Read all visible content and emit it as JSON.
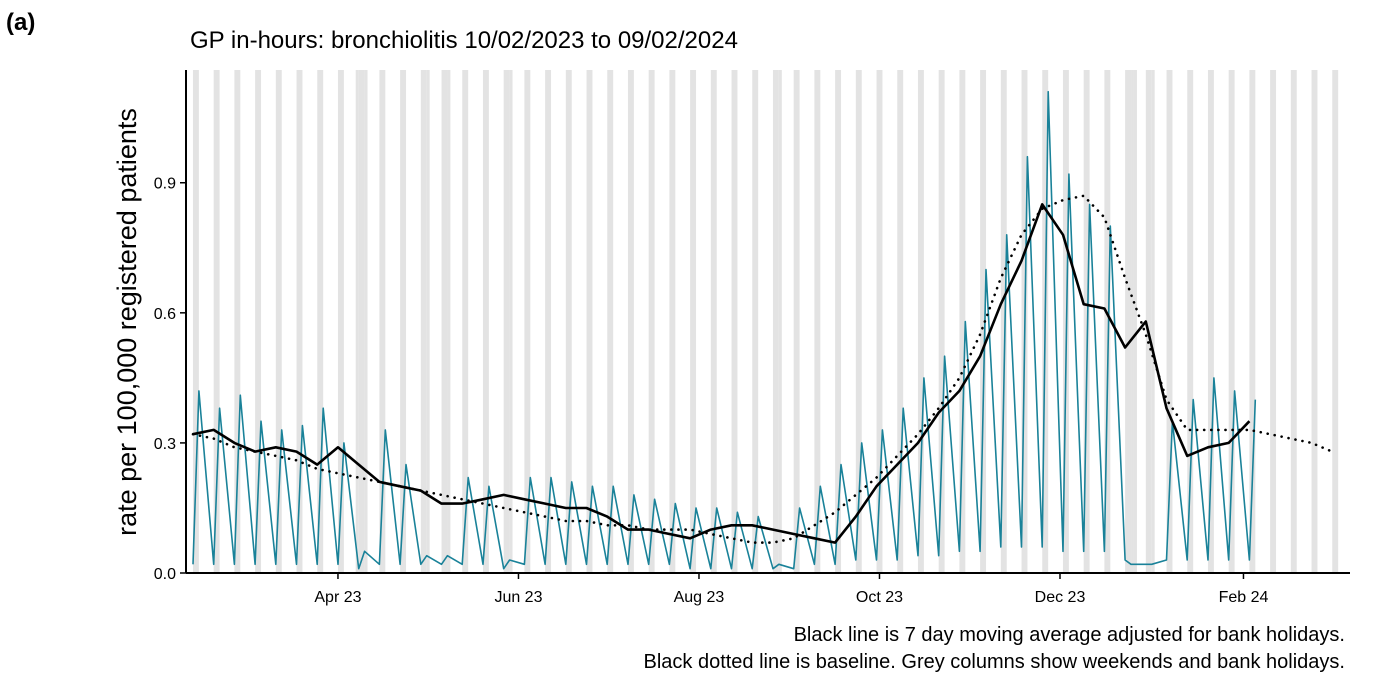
{
  "chart_data": {
    "type": "line",
    "panel_label": "(a)",
    "title": "GP in-hours: bronchiolitis 10/02/2023 to 09/02/2024",
    "ylabel": "rate per 100,000 registered patients",
    "footnotes": [
      "Black line is 7 day moving average adjusted for bank holidays.",
      "Black dotted line is baseline. Grey columns show weekends and bank holidays."
    ],
    "xlim": [
      "2023-02-10",
      "2024-03-08"
    ],
    "ylim": [
      0,
      1.16
    ],
    "xticks": [
      {
        "value": "2023-04-01",
        "label": "Apr 23"
      },
      {
        "value": "2023-06-01",
        "label": "Jun 23"
      },
      {
        "value": "2023-08-01",
        "label": "Aug 23"
      },
      {
        "value": "2023-10-01",
        "label": "Oct 23"
      },
      {
        "value": "2023-12-01",
        "label": "Dec 23"
      },
      {
        "value": "2024-02-01",
        "label": "Feb 24"
      }
    ],
    "yticks": [
      {
        "value": 0,
        "label": "0.0"
      },
      0.3,
      0.6,
      0.9
    ],
    "shade_color": "#e3e3e3",
    "weekend_starts": [
      "2023-02-11",
      "2023-02-18",
      "2023-02-25",
      "2023-03-04",
      "2023-03-11",
      "2023-03-18",
      "2023-03-25",
      "2023-04-01",
      "2023-04-08",
      "2023-04-15",
      "2023-04-22",
      "2023-04-29",
      "2023-05-06",
      "2023-05-13",
      "2023-05-20",
      "2023-05-27",
      "2023-06-03",
      "2023-06-10",
      "2023-06-17",
      "2023-06-24",
      "2023-07-01",
      "2023-07-08",
      "2023-07-15",
      "2023-07-22",
      "2023-07-29",
      "2023-08-05",
      "2023-08-12",
      "2023-08-19",
      "2023-08-26",
      "2023-09-02",
      "2023-09-09",
      "2023-09-16",
      "2023-09-23",
      "2023-09-30",
      "2023-10-07",
      "2023-10-14",
      "2023-10-21",
      "2023-10-28",
      "2023-11-04",
      "2023-11-11",
      "2023-11-18",
      "2023-11-25",
      "2023-12-02",
      "2023-12-09",
      "2023-12-16",
      "2023-12-23",
      "2023-12-30",
      "2024-01-06",
      "2024-01-13",
      "2024-01-20",
      "2024-01-27",
      "2024-02-03",
      "2024-02-10",
      "2024-02-17",
      "2024-02-24",
      "2024-03-02"
    ],
    "bank_holidays": [
      "2023-04-07",
      "2023-04-10",
      "2023-05-01",
      "2023-05-08",
      "2023-05-29",
      "2023-08-28",
      "2023-12-25",
      "2023-12-26",
      "2024-01-01"
    ],
    "series": [
      {
        "color": "#1a8299",
        "style": "solid",
        "width": 1.6,
        "x": [
          "2023-02-11",
          "2023-02-13",
          "2023-02-18",
          "2023-02-20",
          "2023-02-25",
          "2023-02-27",
          "2023-03-04",
          "2023-03-06",
          "2023-03-11",
          "2023-03-13",
          "2023-03-18",
          "2023-03-20",
          "2023-03-25",
          "2023-03-27",
          "2023-04-01",
          "2023-04-03",
          "2023-04-08",
          "2023-04-10",
          "2023-04-15",
          "2023-04-17",
          "2023-04-22",
          "2023-04-24",
          "2023-04-29",
          "2023-05-01",
          "2023-05-06",
          "2023-05-08",
          "2023-05-13",
          "2023-05-15",
          "2023-05-20",
          "2023-05-22",
          "2023-05-27",
          "2023-05-29",
          "2023-06-03",
          "2023-06-05",
          "2023-06-10",
          "2023-06-12",
          "2023-06-17",
          "2023-06-19",
          "2023-06-24",
          "2023-06-26",
          "2023-07-01",
          "2023-07-03",
          "2023-07-08",
          "2023-07-10",
          "2023-07-15",
          "2023-07-17",
          "2023-07-22",
          "2023-07-24",
          "2023-07-29",
          "2023-07-31",
          "2023-08-05",
          "2023-08-07",
          "2023-08-12",
          "2023-08-14",
          "2023-08-19",
          "2023-08-21",
          "2023-08-26",
          "2023-08-28",
          "2023-09-02",
          "2023-09-04",
          "2023-09-09",
          "2023-09-11",
          "2023-09-16",
          "2023-09-18",
          "2023-09-23",
          "2023-09-25",
          "2023-09-30",
          "2023-10-02",
          "2023-10-07",
          "2023-10-09",
          "2023-10-14",
          "2023-10-16",
          "2023-10-21",
          "2023-10-23",
          "2023-10-28",
          "2023-10-30",
          "2023-11-04",
          "2023-11-06",
          "2023-11-11",
          "2023-11-13",
          "2023-11-18",
          "2023-11-20",
          "2023-11-25",
          "2023-11-27",
          "2023-12-02",
          "2023-12-04",
          "2023-12-09",
          "2023-12-11",
          "2023-12-16",
          "2023-12-18",
          "2023-12-23",
          "2023-12-25",
          "2023-12-30",
          "2024-01-01",
          "2024-01-06",
          "2024-01-08",
          "2024-01-13",
          "2024-01-15",
          "2024-01-20",
          "2024-01-22",
          "2024-01-27",
          "2024-01-29",
          "2024-02-03",
          "2024-02-05"
        ],
        "values": [
          0.02,
          0.42,
          0.02,
          0.38,
          0.02,
          0.41,
          0.02,
          0.35,
          0.02,
          0.33,
          0.02,
          0.34,
          0.02,
          0.38,
          0.02,
          0.3,
          0.01,
          0.05,
          0.02,
          0.33,
          0.02,
          0.25,
          0.02,
          0.04,
          0.02,
          0.04,
          0.02,
          0.22,
          0.02,
          0.2,
          0.01,
          0.03,
          0.02,
          0.22,
          0.02,
          0.22,
          0.02,
          0.21,
          0.02,
          0.2,
          0.02,
          0.2,
          0.02,
          0.18,
          0.02,
          0.17,
          0.02,
          0.16,
          0.01,
          0.15,
          0.01,
          0.15,
          0.01,
          0.14,
          0.01,
          0.13,
          0.01,
          0.02,
          0.01,
          0.15,
          0.02,
          0.2,
          0.02,
          0.25,
          0.03,
          0.3,
          0.03,
          0.33,
          0.03,
          0.38,
          0.04,
          0.45,
          0.04,
          0.5,
          0.05,
          0.58,
          0.05,
          0.7,
          0.06,
          0.78,
          0.06,
          0.96,
          0.06,
          1.11,
          0.05,
          0.92,
          0.05,
          0.85,
          0.05,
          0.8,
          0.03,
          0.02,
          0.02,
          0.02,
          0.03,
          0.35,
          0.03,
          0.4,
          0.03,
          0.45,
          0.03,
          0.42,
          0.03,
          0.4
        ]
      },
      {
        "color": "#000000",
        "style": "solid",
        "width": 2.6,
        "x": [
          "2023-02-11",
          "2023-02-18",
          "2023-02-25",
          "2023-03-04",
          "2023-03-11",
          "2023-03-18",
          "2023-03-25",
          "2023-04-01",
          "2023-04-08",
          "2023-04-15",
          "2023-04-22",
          "2023-04-29",
          "2023-05-06",
          "2023-05-13",
          "2023-05-20",
          "2023-05-27",
          "2023-06-03",
          "2023-06-10",
          "2023-06-17",
          "2023-06-24",
          "2023-07-01",
          "2023-07-08",
          "2023-07-15",
          "2023-07-22",
          "2023-07-29",
          "2023-08-05",
          "2023-08-12",
          "2023-08-19",
          "2023-08-26",
          "2023-09-02",
          "2023-09-09",
          "2023-09-16",
          "2023-09-23",
          "2023-09-30",
          "2023-10-07",
          "2023-10-14",
          "2023-10-21",
          "2023-10-28",
          "2023-11-04",
          "2023-11-11",
          "2023-11-18",
          "2023-11-25",
          "2023-12-02",
          "2023-12-09",
          "2023-12-16",
          "2023-12-23",
          "2023-12-30",
          "2024-01-06",
          "2024-01-13",
          "2024-01-20",
          "2024-01-27",
          "2024-02-03"
        ],
        "values": [
          0.32,
          0.33,
          0.3,
          0.28,
          0.29,
          0.28,
          0.25,
          0.29,
          0.25,
          0.21,
          0.2,
          0.19,
          0.16,
          0.16,
          0.17,
          0.18,
          0.17,
          0.16,
          0.15,
          0.15,
          0.13,
          0.1,
          0.1,
          0.09,
          0.08,
          0.1,
          0.11,
          0.11,
          0.1,
          0.09,
          0.08,
          0.07,
          0.13,
          0.2,
          0.25,
          0.3,
          0.37,
          0.42,
          0.5,
          0.62,
          0.72,
          0.85,
          0.78,
          0.62,
          0.61,
          0.52,
          0.58,
          0.38,
          0.27,
          0.29,
          0.3,
          0.35
        ]
      },
      {
        "color": "#000000",
        "style": "dotted",
        "width": 2.6,
        "x": [
          "2023-02-11",
          "2023-02-18",
          "2023-02-25",
          "2023-03-04",
          "2023-03-11",
          "2023-03-18",
          "2023-03-25",
          "2023-04-01",
          "2023-04-08",
          "2023-04-15",
          "2023-04-22",
          "2023-04-29",
          "2023-05-06",
          "2023-05-13",
          "2023-05-20",
          "2023-05-27",
          "2023-06-03",
          "2023-06-10",
          "2023-06-17",
          "2023-06-24",
          "2023-07-01",
          "2023-07-08",
          "2023-07-15",
          "2023-07-22",
          "2023-07-29",
          "2023-08-05",
          "2023-08-12",
          "2023-08-19",
          "2023-08-26",
          "2023-09-02",
          "2023-09-09",
          "2023-09-16",
          "2023-09-23",
          "2023-09-30",
          "2023-10-07",
          "2023-10-14",
          "2023-10-21",
          "2023-10-28",
          "2023-11-04",
          "2023-11-11",
          "2023-11-18",
          "2023-11-25",
          "2023-12-02",
          "2023-12-09",
          "2023-12-16",
          "2023-12-23",
          "2023-12-30",
          "2024-01-06",
          "2024-01-13",
          "2024-01-20",
          "2024-01-27",
          "2024-02-03",
          "2024-02-10",
          "2024-02-17",
          "2024-02-24",
          "2024-03-02"
        ],
        "values": [
          0.32,
          0.31,
          0.29,
          0.28,
          0.27,
          0.26,
          0.24,
          0.23,
          0.22,
          0.21,
          0.2,
          0.19,
          0.18,
          0.17,
          0.16,
          0.15,
          0.14,
          0.13,
          0.12,
          0.12,
          0.11,
          0.11,
          0.1,
          0.1,
          0.1,
          0.09,
          0.08,
          0.07,
          0.07,
          0.08,
          0.11,
          0.14,
          0.18,
          0.22,
          0.27,
          0.32,
          0.38,
          0.45,
          0.55,
          0.68,
          0.78,
          0.84,
          0.86,
          0.87,
          0.82,
          0.68,
          0.55,
          0.4,
          0.33,
          0.33,
          0.33,
          0.33,
          0.32,
          0.31,
          0.3,
          0.28
        ]
      }
    ]
  }
}
